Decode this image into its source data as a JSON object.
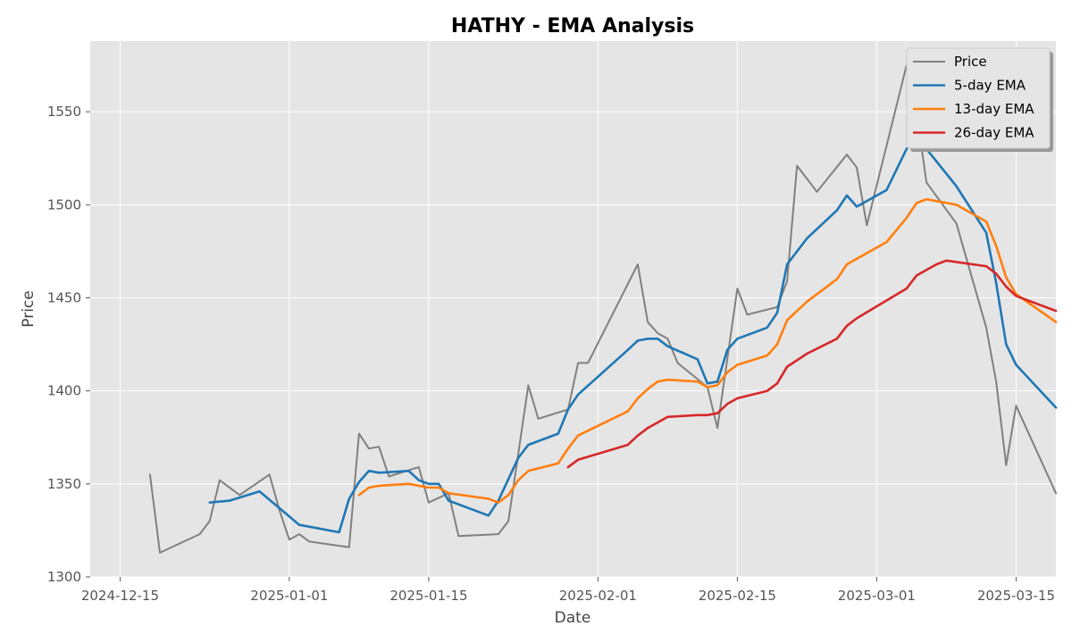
{
  "chart_data": {
    "type": "line",
    "title": "HATHY - EMA Analysis",
    "xlabel": "Date",
    "ylabel": "Price",
    "xlim": [
      "2024-12-12",
      "2025-03-19"
    ],
    "ylim": [
      1300,
      1588
    ],
    "x_ticks": [
      "2024-12-15",
      "2025-01-01",
      "2025-01-15",
      "2025-02-01",
      "2025-02-15",
      "2025-03-01",
      "2025-03-15"
    ],
    "y_ticks": [
      1300,
      1350,
      1400,
      1450,
      1500,
      1550
    ],
    "grid": true,
    "legend_position": "top-right",
    "series": [
      {
        "name": "Price",
        "color": "#808080",
        "points": [
          [
            "2024-12-18",
            1355
          ],
          [
            "2024-12-19",
            1313
          ],
          [
            "2024-12-23",
            1323
          ],
          [
            "2024-12-24",
            1330
          ],
          [
            "2024-12-25",
            1352
          ],
          [
            "2024-12-27",
            1344
          ],
          [
            "2024-12-30",
            1355
          ],
          [
            "2024-12-31",
            1336
          ],
          [
            "2025-01-01",
            1320
          ],
          [
            "2025-01-02",
            1323
          ],
          [
            "2025-01-03",
            1319
          ],
          [
            "2025-01-07",
            1316
          ],
          [
            "2025-01-08",
            1377
          ],
          [
            "2025-01-09",
            1369
          ],
          [
            "2025-01-10",
            1370
          ],
          [
            "2025-01-11",
            1354
          ],
          [
            "2025-01-14",
            1359
          ],
          [
            "2025-01-15",
            1340
          ],
          [
            "2025-01-17",
            1345
          ],
          [
            "2025-01-18",
            1322
          ],
          [
            "2025-01-22",
            1323
          ],
          [
            "2025-01-23",
            1330
          ],
          [
            "2025-01-25",
            1403
          ],
          [
            "2025-01-26",
            1385
          ],
          [
            "2025-01-29",
            1390
          ],
          [
            "2025-01-30",
            1415
          ],
          [
            "2025-01-31",
            1415
          ],
          [
            "2025-02-05",
            1468
          ],
          [
            "2025-02-06",
            1437
          ],
          [
            "2025-02-07",
            1431
          ],
          [
            "2025-02-08",
            1428
          ],
          [
            "2025-02-09",
            1415
          ],
          [
            "2025-02-12",
            1402
          ],
          [
            "2025-02-13",
            1380
          ],
          [
            "2025-02-15",
            1455
          ],
          [
            "2025-02-16",
            1441
          ],
          [
            "2025-02-19",
            1445
          ],
          [
            "2025-02-20",
            1459
          ],
          [
            "2025-02-21",
            1521
          ],
          [
            "2025-02-23",
            1507
          ],
          [
            "2025-02-26",
            1527
          ],
          [
            "2025-02-27",
            1520
          ],
          [
            "2025-02-28",
            1489
          ],
          [
            "2025-03-04",
            1575
          ],
          [
            "2025-03-05",
            1550
          ],
          [
            "2025-03-06",
            1512
          ],
          [
            "2025-03-09",
            1490
          ],
          [
            "2025-03-12",
            1434
          ],
          [
            "2025-03-13",
            1405
          ],
          [
            "2025-03-14",
            1360
          ],
          [
            "2025-03-15",
            1392
          ],
          [
            "2025-03-19",
            1345
          ]
        ]
      },
      {
        "name": "5-day EMA",
        "color": "#1f77b4",
        "points": [
          [
            "2024-12-24",
            1340
          ],
          [
            "2024-12-26",
            1341
          ],
          [
            "2024-12-29",
            1346
          ],
          [
            "2024-12-31",
            1337
          ],
          [
            "2025-01-02",
            1328
          ],
          [
            "2025-01-06",
            1324
          ],
          [
            "2025-01-07",
            1342
          ],
          [
            "2025-01-08",
            1351
          ],
          [
            "2025-01-09",
            1357
          ],
          [
            "2025-01-10",
            1356
          ],
          [
            "2025-01-13",
            1357
          ],
          [
            "2025-01-14",
            1352
          ],
          [
            "2025-01-15",
            1350
          ],
          [
            "2025-01-16",
            1350
          ],
          [
            "2025-01-17",
            1341
          ],
          [
            "2025-01-21",
            1333
          ],
          [
            "2025-01-22",
            1341
          ],
          [
            "2025-01-24",
            1364
          ],
          [
            "2025-01-25",
            1371
          ],
          [
            "2025-01-28",
            1377
          ],
          [
            "2025-01-29",
            1390
          ],
          [
            "2025-01-30",
            1398
          ],
          [
            "2025-02-04",
            1422
          ],
          [
            "2025-02-05",
            1427
          ],
          [
            "2025-02-06",
            1428
          ],
          [
            "2025-02-07",
            1428
          ],
          [
            "2025-02-08",
            1424
          ],
          [
            "2025-02-11",
            1417
          ],
          [
            "2025-02-12",
            1404
          ],
          [
            "2025-02-13",
            1405
          ],
          [
            "2025-02-14",
            1422
          ],
          [
            "2025-02-15",
            1428
          ],
          [
            "2025-02-18",
            1434
          ],
          [
            "2025-02-19",
            1442
          ],
          [
            "2025-02-20",
            1468
          ],
          [
            "2025-02-22",
            1482
          ],
          [
            "2025-02-25",
            1497
          ],
          [
            "2025-02-26",
            1505
          ],
          [
            "2025-02-27",
            1499
          ],
          [
            "2025-03-02",
            1508
          ],
          [
            "2025-03-04",
            1530
          ],
          [
            "2025-03-05",
            1537
          ],
          [
            "2025-03-06",
            1530
          ],
          [
            "2025-03-09",
            1510
          ],
          [
            "2025-03-12",
            1485
          ],
          [
            "2025-03-13",
            1458
          ],
          [
            "2025-03-14",
            1425
          ],
          [
            "2025-03-15",
            1414
          ],
          [
            "2025-03-19",
            1391
          ]
        ]
      },
      {
        "name": "13-day EMA",
        "color": "#ff7f0e",
        "points": [
          [
            "2025-01-08",
            1344
          ],
          [
            "2025-01-09",
            1348
          ],
          [
            "2025-01-10",
            1349
          ],
          [
            "2025-01-13",
            1350
          ],
          [
            "2025-01-14",
            1349
          ],
          [
            "2025-01-15",
            1348
          ],
          [
            "2025-01-16",
            1348
          ],
          [
            "2025-01-17",
            1345
          ],
          [
            "2025-01-21",
            1342
          ],
          [
            "2025-01-22",
            1340
          ],
          [
            "2025-01-23",
            1344
          ],
          [
            "2025-01-24",
            1352
          ],
          [
            "2025-01-25",
            1357
          ],
          [
            "2025-01-28",
            1361
          ],
          [
            "2025-01-29",
            1369
          ],
          [
            "2025-01-30",
            1376
          ],
          [
            "2025-02-04",
            1389
          ],
          [
            "2025-02-05",
            1396
          ],
          [
            "2025-02-06",
            1401
          ],
          [
            "2025-02-07",
            1405
          ],
          [
            "2025-02-08",
            1406
          ],
          [
            "2025-02-11",
            1405
          ],
          [
            "2025-02-12",
            1402
          ],
          [
            "2025-02-13",
            1403
          ],
          [
            "2025-02-14",
            1410
          ],
          [
            "2025-02-15",
            1414
          ],
          [
            "2025-02-18",
            1419
          ],
          [
            "2025-02-19",
            1425
          ],
          [
            "2025-02-20",
            1438
          ],
          [
            "2025-02-22",
            1448
          ],
          [
            "2025-02-25",
            1460
          ],
          [
            "2025-02-26",
            1468
          ],
          [
            "2025-02-27",
            1471
          ],
          [
            "2025-03-02",
            1480
          ],
          [
            "2025-03-04",
            1493
          ],
          [
            "2025-03-05",
            1501
          ],
          [
            "2025-03-06",
            1503
          ],
          [
            "2025-03-07",
            1502
          ],
          [
            "2025-03-09",
            1500
          ],
          [
            "2025-03-12",
            1491
          ],
          [
            "2025-03-13",
            1478
          ],
          [
            "2025-03-14",
            1461
          ],
          [
            "2025-03-15",
            1452
          ],
          [
            "2025-03-19",
            1437
          ]
        ]
      },
      {
        "name": "26-day EMA",
        "color": "#d62728",
        "points": [
          [
            "2025-01-29",
            1359
          ],
          [
            "2025-01-30",
            1363
          ],
          [
            "2025-02-04",
            1371
          ],
          [
            "2025-02-05",
            1376
          ],
          [
            "2025-02-06",
            1380
          ],
          [
            "2025-02-07",
            1383
          ],
          [
            "2025-02-08",
            1386
          ],
          [
            "2025-02-11",
            1387
          ],
          [
            "2025-02-12",
            1387
          ],
          [
            "2025-02-13",
            1388
          ],
          [
            "2025-02-14",
            1393
          ],
          [
            "2025-02-15",
            1396
          ],
          [
            "2025-02-18",
            1400
          ],
          [
            "2025-02-19",
            1404
          ],
          [
            "2025-02-20",
            1413
          ],
          [
            "2025-02-22",
            1420
          ],
          [
            "2025-02-25",
            1428
          ],
          [
            "2025-02-26",
            1435
          ],
          [
            "2025-02-27",
            1439
          ],
          [
            "2025-03-04",
            1455
          ],
          [
            "2025-03-05",
            1462
          ],
          [
            "2025-03-06",
            1465
          ],
          [
            "2025-03-07",
            1468
          ],
          [
            "2025-03-08",
            1470
          ],
          [
            "2025-03-12",
            1467
          ],
          [
            "2025-03-13",
            1463
          ],
          [
            "2025-03-14",
            1456
          ],
          [
            "2025-03-15",
            1451
          ],
          [
            "2025-03-19",
            1443
          ]
        ]
      }
    ]
  }
}
